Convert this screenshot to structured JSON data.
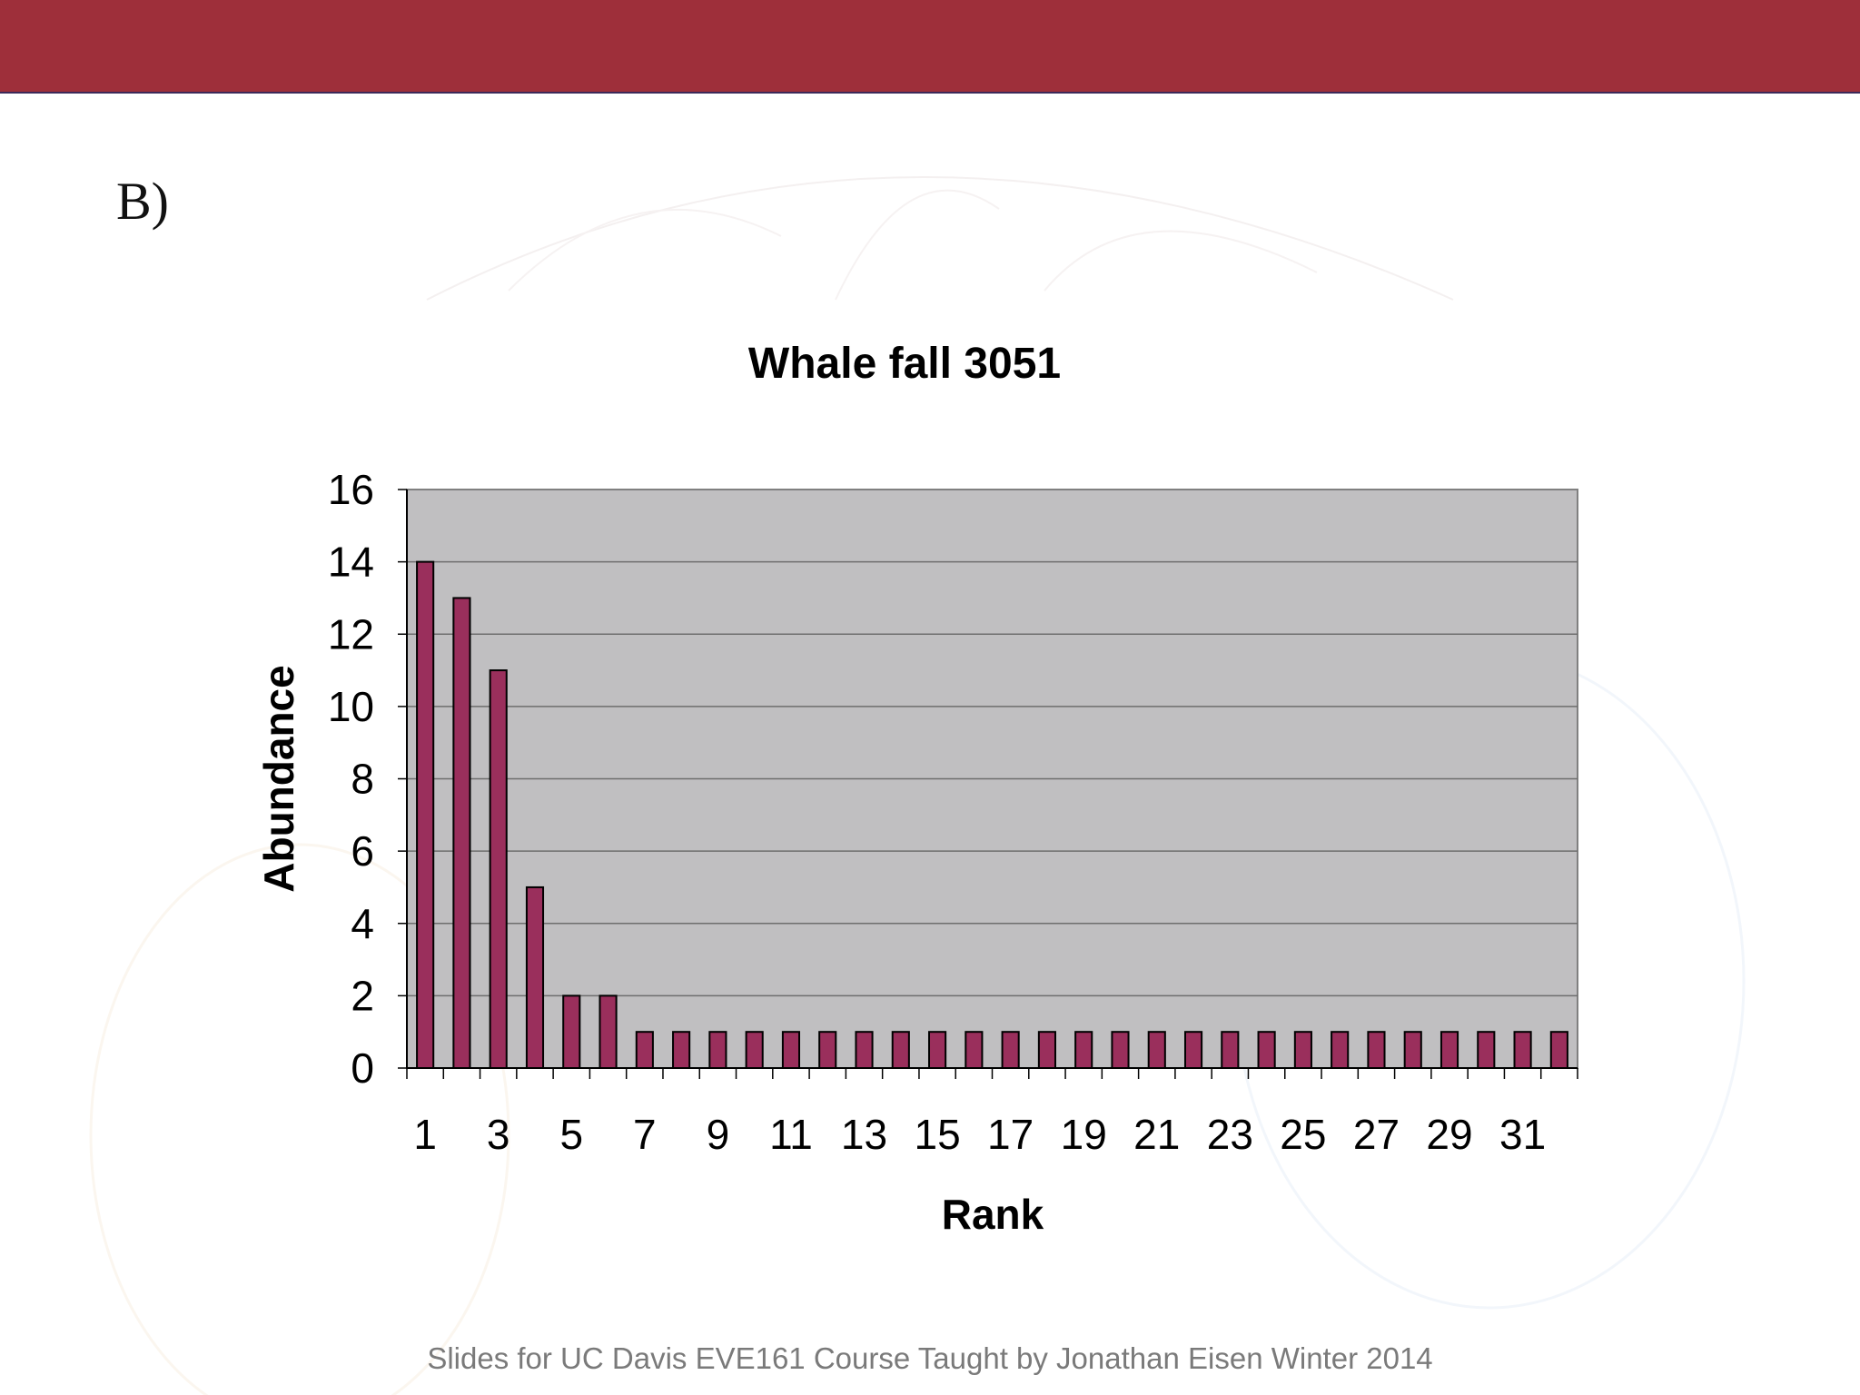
{
  "slide": {
    "panel_label": "B)",
    "footer_text": "Slides for UC Davis EVE161 Course Taught by Jonathan Eisen Winter 2014",
    "header_color": "#9e2f3a"
  },
  "chart_data": {
    "type": "bar",
    "title": "Whale fall 3051",
    "xlabel": "Rank",
    "ylabel": "Abundance",
    "ylim": [
      0,
      16
    ],
    "yticks": [
      0,
      2,
      4,
      6,
      8,
      10,
      12,
      14,
      16
    ],
    "categories": [
      1,
      2,
      3,
      4,
      5,
      6,
      7,
      8,
      9,
      10,
      11,
      12,
      13,
      14,
      15,
      16,
      17,
      18,
      19,
      20,
      21,
      22,
      23,
      24,
      25,
      26,
      27,
      28,
      29,
      30,
      31,
      32
    ],
    "xtick_labels": [
      "1",
      "3",
      "5",
      "7",
      "9",
      "11",
      "13",
      "15",
      "17",
      "19",
      "21",
      "23",
      "25",
      "27",
      "29",
      "31"
    ],
    "values": [
      14,
      13,
      11,
      5,
      2,
      2,
      1,
      1,
      1,
      1,
      1,
      1,
      1,
      1,
      1,
      1,
      1,
      1,
      1,
      1,
      1,
      1,
      1,
      1,
      1,
      1,
      1,
      1,
      1,
      1,
      1,
      1
    ],
    "grid": true,
    "plot_background": "#c0bfc1",
    "bar_color": "#9a2f5c"
  }
}
